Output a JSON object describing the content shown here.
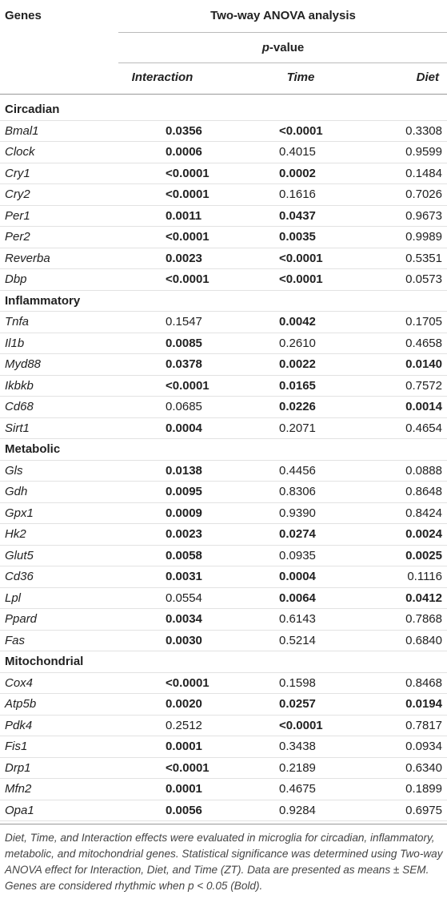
{
  "header": {
    "genes": "Genes",
    "analysis": "Two-way ANOVA analysis",
    "pvalue": {
      "italic": "p",
      "rest": "-value"
    },
    "columns": [
      "Interaction",
      "Time",
      "Diet"
    ]
  },
  "sections": [
    {
      "title": "Circadian",
      "rows": [
        {
          "gene": "Bmal1",
          "values": [
            "0.0356",
            "<0.0001",
            "0.3308"
          ],
          "bold": [
            true,
            true,
            false
          ]
        },
        {
          "gene": "Clock",
          "values": [
            "0.0006",
            "0.4015",
            "0.9599"
          ],
          "bold": [
            true,
            false,
            false
          ]
        },
        {
          "gene": "Cry1",
          "values": [
            "<0.0001",
            "0.0002",
            "0.1484"
          ],
          "bold": [
            true,
            true,
            false
          ]
        },
        {
          "gene": "Cry2",
          "values": [
            "<0.0001",
            "0.1616",
            "0.7026"
          ],
          "bold": [
            true,
            false,
            false
          ]
        },
        {
          "gene": "Per1",
          "values": [
            "0.0011",
            "0.0437",
            "0.9673"
          ],
          "bold": [
            true,
            true,
            false
          ]
        },
        {
          "gene": "Per2",
          "values": [
            "<0.0001",
            "0.0035",
            "0.9989"
          ],
          "bold": [
            true,
            true,
            false
          ]
        },
        {
          "gene": "Reverba",
          "values": [
            "0.0023",
            "<0.0001",
            "0.5351"
          ],
          "bold": [
            true,
            true,
            false
          ]
        },
        {
          "gene": "Dbp",
          "values": [
            "<0.0001",
            "<0.0001",
            "0.0573"
          ],
          "bold": [
            true,
            true,
            false
          ]
        }
      ]
    },
    {
      "title": "Inflammatory",
      "rows": [
        {
          "gene": "Tnfa",
          "values": [
            "0.1547",
            "0.0042",
            "0.1705"
          ],
          "bold": [
            false,
            true,
            false
          ]
        },
        {
          "gene": "Il1b",
          "values": [
            "0.0085",
            "0.2610",
            "0.4658"
          ],
          "bold": [
            true,
            false,
            false
          ]
        },
        {
          "gene": "Myd88",
          "values": [
            "0.0378",
            "0.0022",
            "0.0140"
          ],
          "bold": [
            true,
            true,
            true
          ]
        },
        {
          "gene": "Ikbkb",
          "values": [
            "<0.0001",
            "0.0165",
            "0.7572"
          ],
          "bold": [
            true,
            true,
            false
          ]
        },
        {
          "gene": "Cd68",
          "values": [
            "0.0685",
            "0.0226",
            "0.0014"
          ],
          "bold": [
            false,
            true,
            true
          ]
        },
        {
          "gene": "Sirt1",
          "values": [
            "0.0004",
            "0.2071",
            "0.4654"
          ],
          "bold": [
            true,
            false,
            false
          ]
        }
      ]
    },
    {
      "title": "Metabolic",
      "rows": [
        {
          "gene": "Gls",
          "values": [
            "0.0138",
            "0.4456",
            "0.0888"
          ],
          "bold": [
            true,
            false,
            false
          ]
        },
        {
          "gene": "Gdh",
          "values": [
            "0.0095",
            "0.8306",
            "0.8648"
          ],
          "bold": [
            true,
            false,
            false
          ]
        },
        {
          "gene": "Gpx1",
          "values": [
            "0.0009",
            "0.9390",
            "0.8424"
          ],
          "bold": [
            true,
            false,
            false
          ]
        },
        {
          "gene": "Hk2",
          "values": [
            "0.0023",
            "0.0274",
            "0.0024"
          ],
          "bold": [
            true,
            true,
            true
          ]
        },
        {
          "gene": "Glut5",
          "values": [
            "0.0058",
            "0.0935",
            "0.0025"
          ],
          "bold": [
            true,
            false,
            true
          ]
        },
        {
          "gene": "Cd36",
          "values": [
            "0.0031",
            "0.0004",
            "0.1116"
          ],
          "bold": [
            true,
            true,
            false
          ]
        },
        {
          "gene": "Lpl",
          "values": [
            "0.0554",
            "0.0064",
            "0.0412"
          ],
          "bold": [
            false,
            true,
            true
          ]
        },
        {
          "gene": "Ppard",
          "values": [
            "0.0034",
            "0.6143",
            "0.7868"
          ],
          "bold": [
            true,
            false,
            false
          ]
        },
        {
          "gene": "Fas",
          "values": [
            "0.0030",
            "0.5214",
            "0.6840"
          ],
          "bold": [
            true,
            false,
            false
          ]
        }
      ]
    },
    {
      "title": "Mitochondrial",
      "rows": [
        {
          "gene": "Cox4",
          "values": [
            "<0.0001",
            "0.1598",
            "0.8468"
          ],
          "bold": [
            true,
            false,
            false
          ]
        },
        {
          "gene": "Atp5b",
          "values": [
            "0.0020",
            "0.0257",
            "0.0194"
          ],
          "bold": [
            true,
            true,
            true
          ]
        },
        {
          "gene": "Pdk4",
          "values": [
            "0.2512",
            "<0.0001",
            "0.7817"
          ],
          "bold": [
            false,
            true,
            false
          ]
        },
        {
          "gene": "Fis1",
          "values": [
            "0.0001",
            "0.3438",
            "0.0934"
          ],
          "bold": [
            true,
            false,
            false
          ]
        },
        {
          "gene": "Drp1",
          "values": [
            "<0.0001",
            "0.2189",
            "0.6340"
          ],
          "bold": [
            true,
            false,
            false
          ]
        },
        {
          "gene": "Mfn2",
          "values": [
            "0.0001",
            "0.4675",
            "0.1899"
          ],
          "bold": [
            true,
            false,
            false
          ]
        },
        {
          "gene": "Opa1",
          "values": [
            "0.0056",
            "0.9284",
            "0.6975"
          ],
          "bold": [
            true,
            false,
            false
          ]
        }
      ]
    }
  ],
  "footnote": "Diet, Time, and Interaction effects were evaluated in microglia for circadian, inflammatory, metabolic, and mitochondrial genes. Statistical significance was determined using Two-way ANOVA effect for Interaction, Diet, and Time (ZT). Data are presented as means ± SEM. Genes are considered rhythmic when p < 0.05 (Bold)."
}
